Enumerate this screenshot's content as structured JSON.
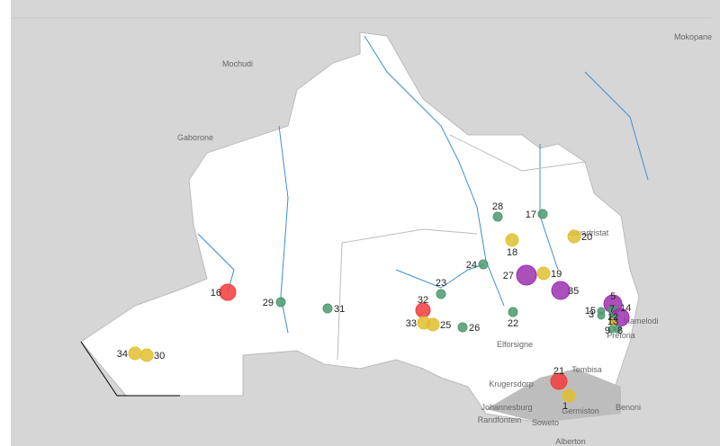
{
  "places": [
    "Mokopane",
    "Mochudi",
    "Gaborone",
    "Swartristat",
    "Mamelodi",
    "Pretoria",
    "Elforsigne",
    "Tembisa",
    "Krugersdorp",
    "Johannesburg",
    "Randfontein",
    "Soweto",
    "Germiston",
    "Benoni",
    "Alberton"
  ],
  "sites": [
    {
      "label": "1",
      "color": "#e0c030"
    },
    {
      "label": "16",
      "color": "#f23c3c"
    },
    {
      "label": "17",
      "color": "#4e9a6e"
    },
    {
      "label": "18",
      "color": "#e0c030"
    },
    {
      "label": "19",
      "color": "#e0c030"
    },
    {
      "label": "20",
      "color": "#e0c030"
    },
    {
      "label": "21",
      "color": "#f23c3c"
    },
    {
      "label": "22",
      "color": "#4e9a6e"
    },
    {
      "label": "23",
      "color": "#4e9a6e"
    },
    {
      "label": "24",
      "color": "#4e9a6e"
    },
    {
      "label": "25",
      "color": "#e0c030"
    },
    {
      "label": "26",
      "color": "#4e9a6e"
    },
    {
      "label": "27",
      "color": "#9b30b0"
    },
    {
      "label": "28",
      "color": "#4e9a6e"
    },
    {
      "label": "29",
      "color": "#4e9a6e"
    },
    {
      "label": "30",
      "color": "#e0c030"
    },
    {
      "label": "31",
      "color": "#4e9a6e"
    },
    {
      "label": "32",
      "color": "#f23c3c"
    },
    {
      "label": "33",
      "color": "#e0c030"
    },
    {
      "label": "34",
      "color": "#e0c030"
    },
    {
      "label": "35",
      "color": "#9b30b0"
    },
    {
      "label": "5",
      "color": "#9b30b0"
    },
    {
      "label": "7",
      "color": "#4e9a6e"
    },
    {
      "label": "14",
      "color": "#9b30b0"
    },
    {
      "label": "15",
      "color": "#4e9a6e"
    },
    {
      "label": "3",
      "color": "#4e9a6e"
    },
    {
      "label": "12",
      "color": "#4e9a6e"
    },
    {
      "label": "13",
      "color": "#e0c030"
    },
    {
      "label": "9",
      "color": "#4e9a6e"
    },
    {
      "label": "8",
      "color": "#4e9a6e"
    }
  ]
}
